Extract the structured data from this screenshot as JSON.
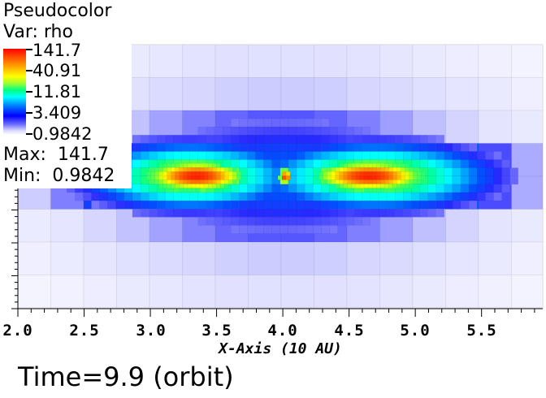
{
  "legend": {
    "plot_type": "Pseudocolor",
    "variable": "Var: rho",
    "ticks": [
      "141.7",
      "40.91",
      "11.81",
      "3.409",
      "0.9842"
    ],
    "max_text": "Max:  141.7",
    "min_text": "Min:  0.9842",
    "colormap": "hot-to-cold rainbow (red high, white low)"
  },
  "axes": {
    "x_ticks": [
      "2.0",
      "2.5",
      "3.0",
      "3.5",
      "4.0",
      "4.5",
      "5.0",
      "5.5"
    ],
    "x_title": "X-Axis (10 AU)"
  },
  "time_label": "Time=9.9 (orbit)",
  "colors": {
    "high": "#ff0000",
    "mid": "#00ff80",
    "low": "#0000ff",
    "background": "#ffffff"
  }
}
